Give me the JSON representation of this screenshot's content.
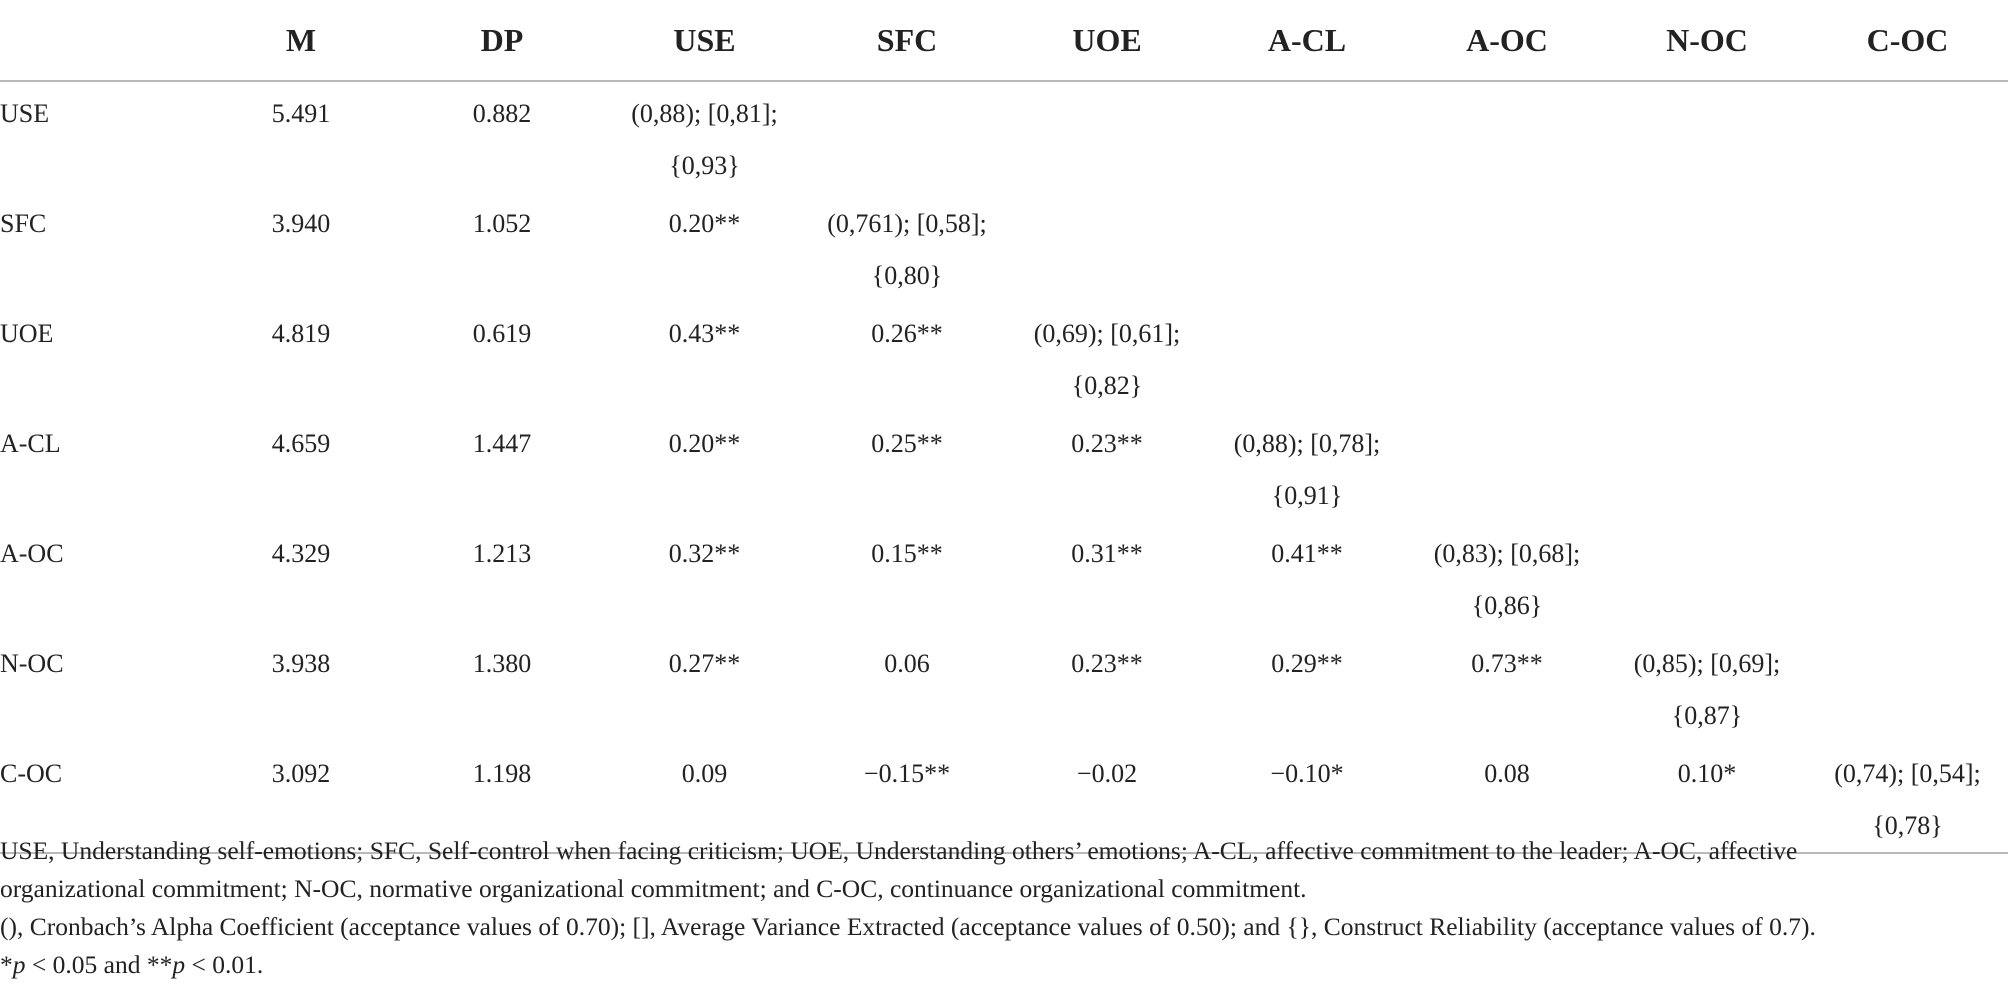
{
  "table": {
    "headers": [
      "",
      "M",
      "DP",
      "USE",
      "SFC",
      "UOE",
      "A-CL",
      "A-OC",
      "N-OC",
      "C-OC"
    ],
    "rows": [
      {
        "label": "USE",
        "m": "5.491",
        "dp": "0.882",
        "cells": [
          {
            "line1": "(0,88); [0,81];",
            "line2": "{0,93}"
          }
        ]
      },
      {
        "label": "SFC",
        "m": "3.940",
        "dp": "1.052",
        "cells": [
          {
            "line1": "0.20**",
            "line2": ""
          },
          {
            "line1": "(0,761); [0,58];",
            "line2": "{0,80}"
          }
        ]
      },
      {
        "label": "UOE",
        "m": "4.819",
        "dp": "0.619",
        "cells": [
          {
            "line1": "0.43**",
            "line2": ""
          },
          {
            "line1": "0.26**",
            "line2": ""
          },
          {
            "line1": "(0,69); [0,61];",
            "line2": "{0,82}"
          }
        ]
      },
      {
        "label": "A-CL",
        "m": "4.659",
        "dp": "1.447",
        "cells": [
          {
            "line1": "0.20**",
            "line2": ""
          },
          {
            "line1": "0.25**",
            "line2": ""
          },
          {
            "line1": "0.23**",
            "line2": ""
          },
          {
            "line1": "(0,88); [0,78];",
            "line2": "{0,91}"
          }
        ]
      },
      {
        "label": "A-OC",
        "m": "4.329",
        "dp": "1.213",
        "cells": [
          {
            "line1": "0.32**",
            "line2": ""
          },
          {
            "line1": "0.15**",
            "line2": ""
          },
          {
            "line1": "0.31**",
            "line2": ""
          },
          {
            "line1": "0.41**",
            "line2": ""
          },
          {
            "line1": "(0,83); [0,68];",
            "line2": "{0,86}"
          }
        ]
      },
      {
        "label": "N-OC",
        "m": "3.938",
        "dp": "1.380",
        "cells": [
          {
            "line1": "0.27**",
            "line2": ""
          },
          {
            "line1": "0.06",
            "line2": ""
          },
          {
            "line1": "0.23**",
            "line2": ""
          },
          {
            "line1": "0.29**",
            "line2": ""
          },
          {
            "line1": "0.73**",
            "line2": ""
          },
          {
            "line1": "(0,85); [0,69];",
            "line2": "{0,87}"
          }
        ]
      },
      {
        "label": "C-OC",
        "m": "3.092",
        "dp": "1.198",
        "cells": [
          {
            "line1": "0.09",
            "line2": ""
          },
          {
            "line1": "−0.15**",
            "line2": ""
          },
          {
            "line1": "−0.02",
            "line2": ""
          },
          {
            "line1": "−0.10*",
            "line2": ""
          },
          {
            "line1": "0.08",
            "line2": ""
          },
          {
            "line1": "0.10*",
            "line2": ""
          },
          {
            "line1": "(0,74); [0,54];",
            "line2": "{0,78}"
          }
        ]
      }
    ]
  },
  "notes": {
    "line1": "USE, Understanding self-emotions; SFC, Self-control when facing criticism; UOE, Understanding others’ emotions; A-CL, affective commitment to the leader; A-OC, affective",
    "line2": "organizational commitment; N-OC, normative organizational commitment; and C-OC, continuance organizational commitment.",
    "line3": "(), Cronbach’s Alpha Coefficient (acceptance values of 0.70); [], Average Variance Extracted (acceptance values of 0.50); and {}, Construct Reliability (acceptance values of 0.7).",
    "line4_star1": "*",
    "line4_p1": "p",
    "line4_mid": " < 0.05 and **",
    "line4_p2": "p",
    "line4_end": " < 0.01."
  }
}
